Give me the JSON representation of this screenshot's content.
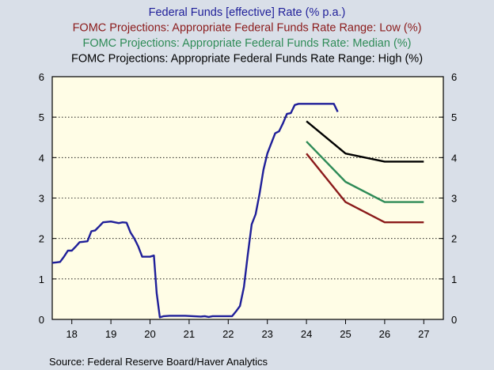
{
  "source_note": "Source:  Federal Reserve Board/Haver Analytics",
  "colors": {
    "background": "#d9dfe8",
    "plot_area": "#fffde6",
    "effective": "#1f1f99",
    "low": "#8b1a1a",
    "median": "#2e8b57",
    "high": "#000000"
  },
  "chart_data": {
    "type": "line",
    "xlim": [
      2017.5,
      2027.5
    ],
    "ylim": [
      0,
      6
    ],
    "y_ticks": [
      "0",
      "1",
      "2",
      "3",
      "4",
      "5",
      "6"
    ],
    "x_tick_labels": [
      "18",
      "19",
      "20",
      "21",
      "22",
      "23",
      "24",
      "25",
      "26",
      "27"
    ],
    "grid": "horizontal dotted",
    "legend_position": "top-center",
    "series": [
      {
        "name": "Federal Funds [effective] Rate (% p.a.)",
        "color": "#1f1f99",
        "points": [
          [
            2017.5,
            1.4
          ],
          [
            2017.6,
            1.41
          ],
          [
            2017.7,
            1.42
          ],
          [
            2017.8,
            1.55
          ],
          [
            2017.9,
            1.7
          ],
          [
            2018.0,
            1.7
          ],
          [
            2018.1,
            1.8
          ],
          [
            2018.2,
            1.91
          ],
          [
            2018.3,
            1.92
          ],
          [
            2018.4,
            1.93
          ],
          [
            2018.5,
            2.18
          ],
          [
            2018.6,
            2.2
          ],
          [
            2018.7,
            2.3
          ],
          [
            2018.8,
            2.4
          ],
          [
            2018.9,
            2.41
          ],
          [
            2019.0,
            2.42
          ],
          [
            2019.1,
            2.4
          ],
          [
            2019.2,
            2.38
          ],
          [
            2019.3,
            2.4
          ],
          [
            2019.4,
            2.39
          ],
          [
            2019.5,
            2.15
          ],
          [
            2019.6,
            2.0
          ],
          [
            2019.7,
            1.8
          ],
          [
            2019.8,
            1.55
          ],
          [
            2019.9,
            1.55
          ],
          [
            2020.0,
            1.55
          ],
          [
            2020.1,
            1.58
          ],
          [
            2020.17,
            0.65
          ],
          [
            2020.25,
            0.05
          ],
          [
            2020.35,
            0.08
          ],
          [
            2020.5,
            0.09
          ],
          [
            2020.7,
            0.09
          ],
          [
            2020.9,
            0.09
          ],
          [
            2021.1,
            0.08
          ],
          [
            2021.3,
            0.07
          ],
          [
            2021.4,
            0.08
          ],
          [
            2021.5,
            0.06
          ],
          [
            2021.6,
            0.08
          ],
          [
            2021.8,
            0.08
          ],
          [
            2022.0,
            0.08
          ],
          [
            2022.1,
            0.08
          ],
          [
            2022.2,
            0.2
          ],
          [
            2022.3,
            0.33
          ],
          [
            2022.4,
            0.8
          ],
          [
            2022.5,
            1.6
          ],
          [
            2022.6,
            2.35
          ],
          [
            2022.7,
            2.6
          ],
          [
            2022.8,
            3.1
          ],
          [
            2022.9,
            3.7
          ],
          [
            2023.0,
            4.1
          ],
          [
            2023.1,
            4.35
          ],
          [
            2023.2,
            4.6
          ],
          [
            2023.3,
            4.65
          ],
          [
            2023.4,
            4.85
          ],
          [
            2023.5,
            5.08
          ],
          [
            2023.6,
            5.1
          ],
          [
            2023.7,
            5.3
          ],
          [
            2023.8,
            5.33
          ],
          [
            2024.0,
            5.33
          ],
          [
            2024.2,
            5.33
          ],
          [
            2024.4,
            5.33
          ],
          [
            2024.6,
            5.33
          ],
          [
            2024.7,
            5.33
          ],
          [
            2024.8,
            5.13
          ]
        ]
      },
      {
        "name": "FOMC Projections: Appropriate Federal Funds Rate Range: Low (%)",
        "color": "#8b1a1a",
        "points": [
          [
            2024.0,
            4.1
          ],
          [
            2025.0,
            2.9
          ],
          [
            2026.0,
            2.4
          ],
          [
            2027.0,
            2.4
          ]
        ]
      },
      {
        "name": "FOMC Projections: Appropriate Federal Funds Rate: Median (%)",
        "color": "#2e8b57",
        "points": [
          [
            2024.0,
            4.4
          ],
          [
            2025.0,
            3.4
          ],
          [
            2026.0,
            2.9
          ],
          [
            2027.0,
            2.9
          ]
        ]
      },
      {
        "name": "FOMC Projections: Appropriate Federal Funds Rate Range: High (%)",
        "color": "#000000",
        "points": [
          [
            2024.0,
            4.9
          ],
          [
            2025.0,
            4.1
          ],
          [
            2026.0,
            3.9
          ],
          [
            2027.0,
            3.9
          ]
        ]
      }
    ]
  }
}
